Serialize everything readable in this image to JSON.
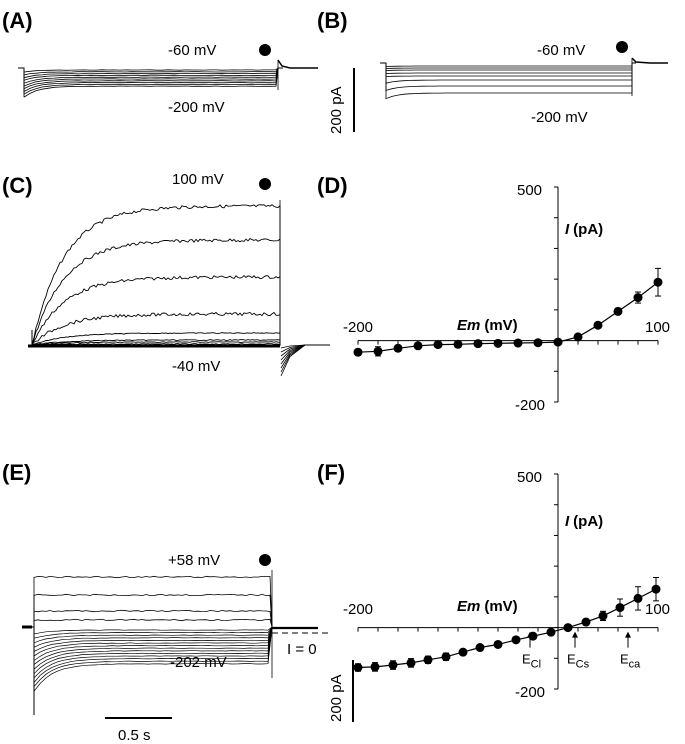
{
  "panels": {
    "A": {
      "label": "(A)",
      "top_voltage": "-60 mV",
      "bottom_voltage": "-200 mV"
    },
    "B": {
      "label": "(B)",
      "top_voltage": "-60 mV",
      "bottom_voltage": "-200 mV"
    },
    "C": {
      "label": "(C)",
      "top_voltage": "100 mV",
      "bottom_voltage": "-40 mV"
    },
    "D": {
      "label": "(D)"
    },
    "E": {
      "label": "(E)",
      "top_voltage": "+58 mV",
      "bottom_voltage": "-202 mV",
      "zero_current": "I = 0"
    },
    "F": {
      "label": "(F)"
    }
  },
  "scale_bars": {
    "current": "200 pA",
    "time": "0.5 s"
  },
  "colors": {
    "ink": "#000000",
    "background": "#ffffff"
  },
  "chart_data": [
    {
      "panel": "D",
      "type": "line",
      "xlabel_italic": "Em",
      "xlabel_unit": "(mV)",
      "ylabel_italic": "I",
      "ylabel_unit": "(pA)",
      "xlim": [
        -200,
        100
      ],
      "ylim": [
        -200,
        500
      ],
      "x_tick_labels": [
        "-200",
        "100"
      ],
      "y_tick_labels": [
        "500",
        "-200"
      ],
      "x": [
        -200,
        -180,
        -160,
        -140,
        -120,
        -100,
        -80,
        -60,
        -40,
        -20,
        0,
        20,
        40,
        60,
        80,
        100
      ],
      "y": [
        -38,
        -35,
        -25,
        -17,
        -13,
        -12,
        -10,
        -9,
        -8,
        -7,
        -5,
        12,
        50,
        95,
        140,
        190
      ],
      "error": [
        10,
        15,
        10,
        7,
        5,
        5,
        4,
        4,
        4,
        3,
        3,
        4,
        6,
        10,
        18,
        45
      ]
    },
    {
      "panel": "F",
      "type": "line",
      "xlabel_italic": "Em",
      "xlabel_unit": "(mV)",
      "ylabel_italic": "I",
      "ylabel_unit": "(pA)",
      "xlim": [
        -200,
        100
      ],
      "ylim": [
        -200,
        500
      ],
      "x_tick_labels": [
        "-200",
        "100"
      ],
      "y_tick_labels": [
        "500",
        "-200"
      ],
      "x": [
        -200,
        -183,
        -165,
        -147,
        -130,
        -112,
        -95,
        -78,
        -60,
        -42,
        -25,
        -7,
        10,
        28,
        45,
        62,
        80,
        98
      ],
      "y": [
        -130,
        -128,
        -122,
        -115,
        -105,
        -95,
        -80,
        -65,
        -55,
        -40,
        -28,
        -15,
        0,
        18,
        38,
        65,
        95,
        125
      ],
      "error": [
        12,
        14,
        14,
        14,
        12,
        12,
        8,
        8,
        6,
        6,
        5,
        5,
        5,
        10,
        15,
        28,
        38,
        38
      ],
      "reversal_markers": [
        {
          "main": "E",
          "sub": "Cl",
          "x": -28
        },
        {
          "main": "E",
          "sub": "Cs",
          "x": 17
        },
        {
          "main": "E",
          "sub": "ca",
          "x": 70
        }
      ]
    }
  ]
}
